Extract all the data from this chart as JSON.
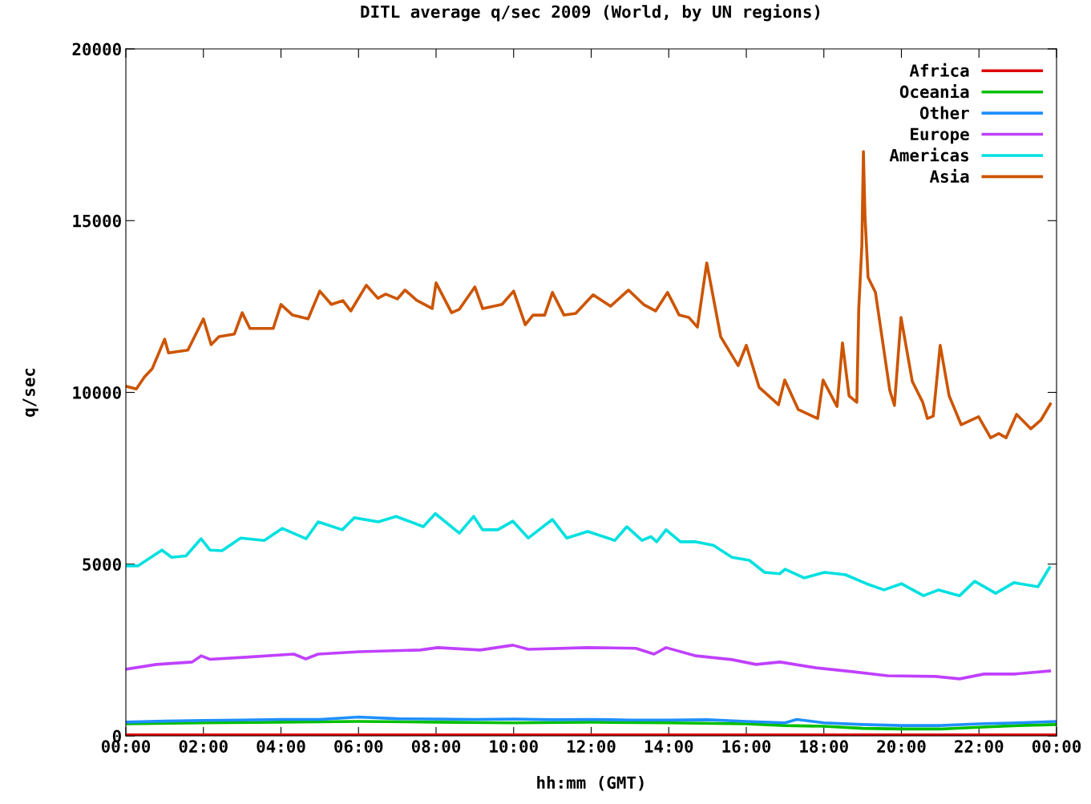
{
  "chart_data": {
    "type": "line",
    "title": "DITL average q/sec 2009 (World, by UN regions)",
    "xlabel": "hh:mm (GMT)",
    "ylabel": "q/sec",
    "xlim": [
      0,
      24
    ],
    "ylim": [
      0,
      20000
    ],
    "yticks": [
      0,
      5000,
      10000,
      15000,
      20000
    ],
    "xticks": [
      {
        "value": 0,
        "label": "00:00"
      },
      {
        "value": 2,
        "label": "02:00"
      },
      {
        "value": 4,
        "label": "04:00"
      },
      {
        "value": 6,
        "label": "06:00"
      },
      {
        "value": 8,
        "label": "08:00"
      },
      {
        "value": 10,
        "label": "10:00"
      },
      {
        "value": 12,
        "label": "12:00"
      },
      {
        "value": 14,
        "label": "14:00"
      },
      {
        "value": 16,
        "label": "16:00"
      },
      {
        "value": 18,
        "label": "18:00"
      },
      {
        "value": 20,
        "label": "20:00"
      },
      {
        "value": 22,
        "label": "22:00"
      },
      {
        "value": 24,
        "label": "00:00"
      }
    ],
    "grid": false,
    "legend": "top right",
    "marker": "none",
    "line_style": "solid",
    "series": [
      {
        "name": "Africa",
        "color": "#e00000",
        "x": [
          0,
          6,
          12,
          18,
          24
        ],
        "values": [
          30,
          30,
          30,
          30,
          30
        ]
      },
      {
        "name": "Oceania",
        "color": "#00c000",
        "x": [
          0,
          2,
          4,
          6,
          8,
          10,
          12,
          14,
          16,
          17,
          18,
          19,
          20,
          21,
          22,
          23,
          24
        ],
        "values": [
          350,
          380,
          400,
          420,
          400,
          380,
          400,
          380,
          350,
          300,
          280,
          220,
          200,
          200,
          250,
          300,
          330
        ]
      },
      {
        "name": "Other",
        "color": "#1e90ff",
        "x": [
          0,
          1,
          2,
          3,
          4,
          5,
          6,
          7,
          8,
          9,
          10,
          11,
          12,
          13,
          14,
          15,
          16,
          17,
          17.3,
          18,
          19,
          20,
          21,
          22,
          23,
          24
        ],
        "values": [
          400,
          430,
          450,
          460,
          480,
          480,
          550,
          500,
          490,
          480,
          490,
          470,
          480,
          460,
          460,
          470,
          420,
          380,
          480,
          380,
          330,
          300,
          300,
          350,
          380,
          420
        ]
      },
      {
        "name": "Europe",
        "color": "#c040ff",
        "x": [
          0,
          0.79,
          1.71,
          1.94,
          2.17,
          3.09,
          4.33,
          4.64,
          4.96,
          6.03,
          7.59,
          8.04,
          9.14,
          9.98,
          10.38,
          11.91,
          13.15,
          13.62,
          13.93,
          14.7,
          15.63,
          16.25,
          16.87,
          17.8,
          18.73,
          19.64,
          20.88,
          21.5,
          22.13,
          22.91,
          23.82
        ],
        "values": [
          1940,
          2080,
          2150,
          2330,
          2230,
          2290,
          2380,
          2240,
          2380,
          2450,
          2500,
          2570,
          2500,
          2640,
          2520,
          2570,
          2550,
          2380,
          2570,
          2330,
          2220,
          2080,
          2150,
          1980,
          1870,
          1750,
          1730,
          1660,
          1800,
          1800,
          1890
        ]
      },
      {
        "name": "Americas",
        "color": "#00e0e0",
        "x": [
          0,
          0.31,
          0.93,
          1.18,
          1.55,
          1.94,
          2.17,
          2.48,
          2.96,
          3.57,
          4.03,
          4.65,
          4.96,
          5.58,
          5.89,
          6.51,
          6.97,
          7.67,
          7.98,
          8.6,
          8.97,
          9.2,
          9.59,
          9.98,
          10.38,
          11.0,
          11.37,
          11.91,
          12.61,
          12.92,
          13.31,
          13.54,
          13.69,
          13.93,
          14.3,
          14.7,
          15.15,
          15.63,
          16.08,
          16.47,
          16.86,
          17.0,
          17.49,
          18.02,
          18.56,
          19.1,
          19.55,
          20.0,
          20.57,
          20.96,
          21.5,
          21.89,
          22.43,
          22.9,
          23.52,
          23.82
        ],
        "values": [
          4950,
          4950,
          5410,
          5200,
          5240,
          5740,
          5410,
          5390,
          5760,
          5690,
          6040,
          5740,
          6230,
          6000,
          6350,
          6230,
          6390,
          6090,
          6470,
          5900,
          6390,
          6000,
          6000,
          6250,
          5760,
          6300,
          5760,
          5950,
          5690,
          6090,
          5690,
          5800,
          5650,
          6000,
          5650,
          5650,
          5550,
          5200,
          5110,
          4760,
          4720,
          4850,
          4600,
          4760,
          4690,
          4430,
          4250,
          4430,
          4080,
          4250,
          4080,
          4500,
          4150,
          4460,
          4340,
          4900
        ]
      },
      {
        "name": "Asia",
        "color": "#cc5500",
        "x": [
          0,
          0.27,
          0.48,
          0.68,
          1.0,
          1.1,
          1.6,
          2.0,
          2.2,
          2.4,
          2.8,
          3.0,
          3.2,
          3.8,
          4.0,
          4.3,
          4.7,
          5.0,
          5.3,
          5.6,
          5.8,
          6.2,
          6.5,
          6.7,
          7.0,
          7.2,
          7.5,
          7.9,
          8.0,
          8.4,
          8.6,
          9.0,
          9.2,
          9.7,
          10.0,
          10.3,
          10.5,
          10.8,
          11.0,
          11.3,
          11.6,
          12.05,
          12.5,
          12.96,
          13.35,
          13.66,
          13.97,
          14.27,
          14.52,
          14.74,
          14.98,
          15.34,
          15.79,
          16.0,
          16.33,
          16.83,
          16.99,
          17.34,
          17.84,
          17.98,
          18.34,
          18.48,
          18.65,
          18.85,
          18.9,
          18.98,
          19.02,
          19.06,
          19.14,
          19.33,
          19.7,
          19.82,
          19.99,
          20.28,
          20.55,
          20.67,
          20.82,
          21.0,
          21.23,
          21.54,
          21.99,
          22.3,
          22.51,
          22.7,
          22.97,
          23.34,
          23.6,
          23.84
        ],
        "values": [
          10180,
          10100,
          10450,
          10690,
          11550,
          11150,
          11230,
          12140,
          11390,
          11620,
          11700,
          12320,
          11860,
          11860,
          12560,
          12250,
          12140,
          12950,
          12560,
          12670,
          12370,
          13120,
          12740,
          12860,
          12720,
          12980,
          12680,
          12440,
          13190,
          12320,
          12420,
          13070,
          12440,
          12560,
          12950,
          11970,
          12250,
          12250,
          12910,
          12250,
          12300,
          12840,
          12510,
          12980,
          12560,
          12370,
          12910,
          12250,
          12180,
          11900,
          13770,
          11620,
          10780,
          11370,
          10150,
          9640,
          10360,
          9500,
          9240,
          10360,
          9590,
          11440,
          9900,
          9710,
          12440,
          14280,
          17010,
          15150,
          13350,
          12910,
          10060,
          9620,
          12180,
          10320,
          9710,
          9240,
          9310,
          11370,
          9900,
          9060,
          9290,
          8680,
          8800,
          8680,
          9360,
          8940,
          9200,
          9660
        ]
      }
    ]
  }
}
